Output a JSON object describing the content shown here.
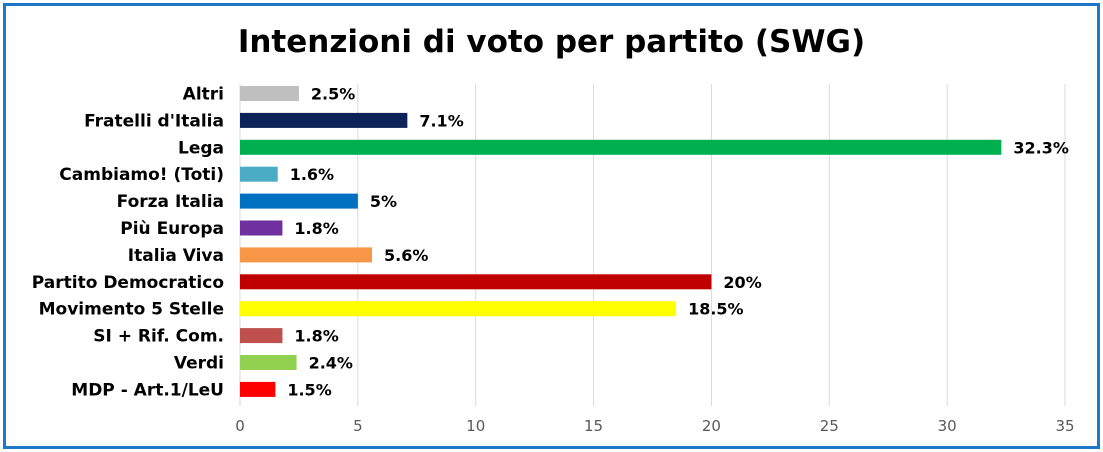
{
  "chart_data": {
    "type": "bar",
    "orientation": "horizontal",
    "title": "Intenzioni di voto per partito (SWG)",
    "xlabel": "",
    "ylabel": "",
    "xlim": [
      0,
      35
    ],
    "ticks": [
      0,
      5,
      10,
      15,
      20,
      25,
      30,
      35
    ],
    "tick_labels": [
      "0",
      "5",
      "10",
      "15",
      "20",
      "25",
      "30",
      "35"
    ],
    "grid": true,
    "categories": [
      "Altri",
      "Fratelli d'Italia",
      "Lega",
      "Cambiamo! (Toti)",
      "Forza Italia",
      "Più Europa",
      "Italia Viva",
      "Partito Democratico",
      "Movimento 5 Stelle",
      "SI + Rif. Com.",
      "Verdi",
      "MDP - Art.1/LeU"
    ],
    "values": [
      2.5,
      7.1,
      32.3,
      1.6,
      5,
      1.8,
      5.6,
      20,
      18.5,
      1.8,
      2.4,
      1.5
    ],
    "value_labels": [
      "2.5%",
      "7.1%",
      "32.3%",
      "1.6%",
      "5%",
      "1.8%",
      "5.6%",
      "20%",
      "18.5%",
      "1.8%",
      "2.4%",
      "1.5%"
    ],
    "colors": [
      "#bfbfbf",
      "#0d2358",
      "#00b050",
      "#4bacc6",
      "#0070c0",
      "#7030a0",
      "#f79646",
      "#c00000",
      "#ffff00",
      "#c0504d",
      "#92d050",
      "#ff0000"
    ]
  }
}
